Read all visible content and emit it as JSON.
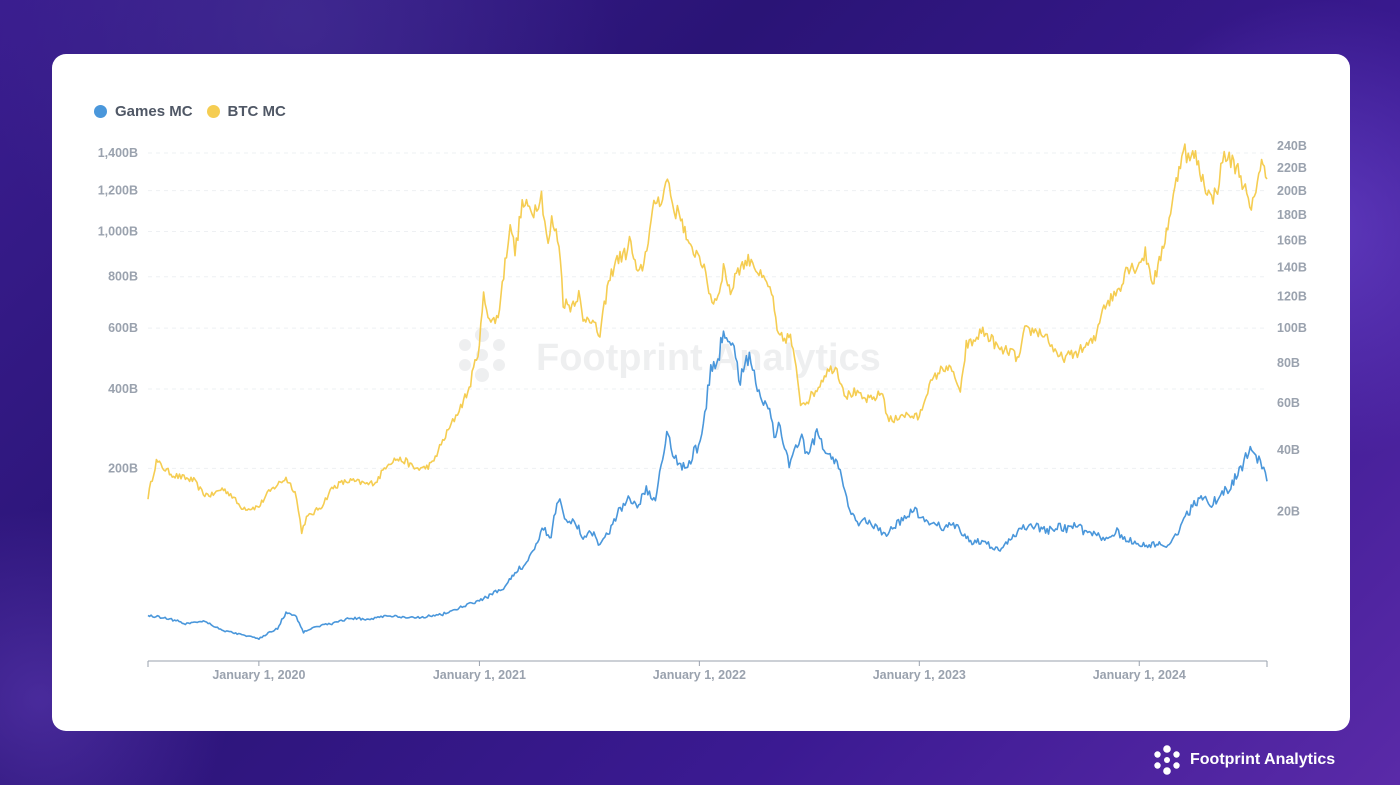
{
  "brand": {
    "name": "Footprint Analytics"
  },
  "chart_data": {
    "type": "line",
    "legend": [
      {
        "label": "Games MC",
        "color": "#4a97db"
      },
      {
        "label": "BTC MC",
        "color": "#f5cd52"
      }
    ],
    "legend_position": "top-left",
    "grid": true,
    "x_ticks": [
      "January 1, 2020",
      "January 1, 2021",
      "January 1, 2022",
      "January 1, 2023",
      "January 1, 2024"
    ],
    "x_range": [
      "2019-07-01",
      "2024-07-31"
    ],
    "y_left": {
      "scale": "sqrt",
      "range": [
        0,
        1400
      ],
      "unit": "B",
      "ticks": [
        "200B",
        "400B",
        "600B",
        "800B",
        "1,000B",
        "1,200B",
        "1,400B"
      ],
      "tick_values": [
        200,
        400,
        600,
        800,
        1000,
        1200,
        1400
      ]
    },
    "y_right": {
      "scale": "sqrt",
      "range": [
        0,
        240
      ],
      "unit": "B",
      "ticks": [
        "20B",
        "40B",
        "60B",
        "80B",
        "100B",
        "120B",
        "140B",
        "160B",
        "180B",
        "200B",
        "220B",
        "240B"
      ],
      "tick_values": [
        20,
        40,
        60,
        80,
        100,
        120,
        140,
        160,
        180,
        200,
        220,
        240
      ]
    },
    "series": [
      {
        "name": "BTC MC",
        "axis": "left",
        "color": "#f5cd52",
        "points": [
          [
            "2019-07-01",
            145
          ],
          [
            "2019-07-15",
            215
          ],
          [
            "2019-08-01",
            195
          ],
          [
            "2019-08-15",
            185
          ],
          [
            "2019-09-01",
            180
          ],
          [
            "2019-09-15",
            175
          ],
          [
            "2019-10-01",
            150
          ],
          [
            "2019-10-15",
            148
          ],
          [
            "2019-11-01",
            160
          ],
          [
            "2019-11-15",
            150
          ],
          [
            "2019-12-01",
            128
          ],
          [
            "2019-12-15",
            125
          ],
          [
            "2020-01-01",
            128
          ],
          [
            "2020-01-15",
            150
          ],
          [
            "2020-02-01",
            168
          ],
          [
            "2020-02-15",
            180
          ],
          [
            "2020-03-01",
            155
          ],
          [
            "2020-03-12",
            90
          ],
          [
            "2020-03-20",
            110
          ],
          [
            "2020-04-01",
            118
          ],
          [
            "2020-04-15",
            130
          ],
          [
            "2020-05-01",
            160
          ],
          [
            "2020-05-15",
            170
          ],
          [
            "2020-06-01",
            175
          ],
          [
            "2020-06-15",
            172
          ],
          [
            "2020-07-01",
            168
          ],
          [
            "2020-07-15",
            175
          ],
          [
            "2020-08-01",
            210
          ],
          [
            "2020-08-15",
            220
          ],
          [
            "2020-09-01",
            215
          ],
          [
            "2020-09-15",
            200
          ],
          [
            "2020-10-01",
            200
          ],
          [
            "2020-10-15",
            210
          ],
          [
            "2020-11-01",
            260
          ],
          [
            "2020-11-15",
            300
          ],
          [
            "2020-12-01",
            350
          ],
          [
            "2020-12-15",
            400
          ],
          [
            "2021-01-01",
            540
          ],
          [
            "2021-01-08",
            720
          ],
          [
            "2021-01-20",
            620
          ],
          [
            "2021-02-01",
            640
          ],
          [
            "2021-02-15",
            900
          ],
          [
            "2021-02-21",
            1050
          ],
          [
            "2021-03-01",
            900
          ],
          [
            "2021-03-13",
            1130
          ],
          [
            "2021-04-01",
            1100
          ],
          [
            "2021-04-14",
            1180
          ],
          [
            "2021-04-25",
            930
          ],
          [
            "2021-05-01",
            1050
          ],
          [
            "2021-05-13",
            950
          ],
          [
            "2021-05-20",
            700
          ],
          [
            "2021-06-01",
            680
          ],
          [
            "2021-06-15",
            730
          ],
          [
            "2021-06-22",
            620
          ],
          [
            "2021-07-01",
            650
          ],
          [
            "2021-07-20",
            570
          ],
          [
            "2021-08-01",
            750
          ],
          [
            "2021-08-15",
            870
          ],
          [
            "2021-09-01",
            900
          ],
          [
            "2021-09-07",
            960
          ],
          [
            "2021-09-21",
            800
          ],
          [
            "2021-10-01",
            860
          ],
          [
            "2021-10-20",
            1150
          ],
          [
            "2021-11-01",
            1160
          ],
          [
            "2021-11-09",
            1270
          ],
          [
            "2021-11-20",
            1100
          ],
          [
            "2021-12-01",
            1080
          ],
          [
            "2021-12-15",
            920
          ],
          [
            "2022-01-01",
            900
          ],
          [
            "2022-01-22",
            700
          ],
          [
            "2022-02-01",
            720
          ],
          [
            "2022-02-10",
            840
          ],
          [
            "2022-02-24",
            720
          ],
          [
            "2022-03-01",
            820
          ],
          [
            "2022-03-28",
            880
          ],
          [
            "2022-04-10",
            810
          ],
          [
            "2022-04-25",
            760
          ],
          [
            "2022-05-01",
            740
          ],
          [
            "2022-05-10",
            580
          ],
          [
            "2022-05-20",
            560
          ],
          [
            "2022-06-01",
            570
          ],
          [
            "2022-06-13",
            430
          ],
          [
            "2022-06-18",
            360
          ],
          [
            "2022-07-01",
            370
          ],
          [
            "2022-07-15",
            400
          ],
          [
            "2022-07-30",
            450
          ],
          [
            "2022-08-15",
            470
          ],
          [
            "2022-09-01",
            380
          ],
          [
            "2022-09-15",
            390
          ],
          [
            "2022-10-01",
            370
          ],
          [
            "2022-10-15",
            370
          ],
          [
            "2022-11-01",
            390
          ],
          [
            "2022-11-09",
            320
          ],
          [
            "2022-11-20",
            310
          ],
          [
            "2022-12-01",
            330
          ],
          [
            "2022-12-15",
            325
          ],
          [
            "2023-01-01",
            320
          ],
          [
            "2023-01-15",
            400
          ],
          [
            "2023-02-01",
            450
          ],
          [
            "2023-02-15",
            470
          ],
          [
            "2023-03-01",
            440
          ],
          [
            "2023-03-10",
            380
          ],
          [
            "2023-03-20",
            540
          ],
          [
            "2023-04-01",
            550
          ],
          [
            "2023-04-14",
            590
          ],
          [
            "2023-05-01",
            560
          ],
          [
            "2023-05-15",
            520
          ],
          [
            "2023-06-01",
            520
          ],
          [
            "2023-06-15",
            490
          ],
          [
            "2023-06-25",
            590
          ],
          [
            "2023-07-15",
            590
          ],
          [
            "2023-08-01",
            570
          ],
          [
            "2023-08-17",
            500
          ],
          [
            "2023-09-01",
            500
          ],
          [
            "2023-09-15",
            510
          ],
          [
            "2023-10-01",
            530
          ],
          [
            "2023-10-20",
            560
          ],
          [
            "2023-11-01",
            680
          ],
          [
            "2023-11-15",
            710
          ],
          [
            "2023-12-01",
            760
          ],
          [
            "2023-12-10",
            840
          ],
          [
            "2023-12-25",
            840
          ],
          [
            "2024-01-01",
            860
          ],
          [
            "2024-01-11",
            900
          ],
          [
            "2024-01-23",
            780
          ],
          [
            "2024-02-01",
            830
          ],
          [
            "2024-02-15",
            1000
          ],
          [
            "2024-02-29",
            1200
          ],
          [
            "2024-03-14",
            1440
          ],
          [
            "2024-03-25",
            1350
          ],
          [
            "2024-04-01",
            1400
          ],
          [
            "2024-04-13",
            1280
          ],
          [
            "2024-04-30",
            1150
          ],
          [
            "2024-05-10",
            1220
          ],
          [
            "2024-05-21",
            1390
          ],
          [
            "2024-06-01",
            1360
          ],
          [
            "2024-06-15",
            1300
          ],
          [
            "2024-06-25",
            1200
          ],
          [
            "2024-07-05",
            1080
          ],
          [
            "2024-07-15",
            1270
          ],
          [
            "2024-07-22",
            1340
          ],
          [
            "2024-07-31",
            1260
          ]
        ]
      },
      {
        "name": "Games MC",
        "axis": "right",
        "color": "#4a97db",
        "points": [
          [
            "2019-07-01",
            1.8
          ],
          [
            "2019-08-01",
            1.6
          ],
          [
            "2019-09-01",
            1.2
          ],
          [
            "2019-10-01",
            1.4
          ],
          [
            "2019-11-01",
            0.8
          ],
          [
            "2019-12-01",
            0.6
          ],
          [
            "2020-01-01",
            0.4
          ],
          [
            "2020-02-01",
            0.9
          ],
          [
            "2020-02-15",
            2.0
          ],
          [
            "2020-03-01",
            1.8
          ],
          [
            "2020-03-15",
            0.7
          ],
          [
            "2020-04-01",
            1.0
          ],
          [
            "2020-05-01",
            1.2
          ],
          [
            "2020-06-01",
            1.6
          ],
          [
            "2020-07-01",
            1.5
          ],
          [
            "2020-08-01",
            1.8
          ],
          [
            "2020-09-01",
            1.6
          ],
          [
            "2020-10-01",
            1.7
          ],
          [
            "2020-11-01",
            1.9
          ],
          [
            "2020-12-01",
            2.5
          ],
          [
            "2021-01-01",
            3.2
          ],
          [
            "2021-01-20",
            3.8
          ],
          [
            "2021-02-15",
            5.0
          ],
          [
            "2021-03-01",
            7.0
          ],
          [
            "2021-03-20",
            8.5
          ],
          [
            "2021-04-05",
            12.0
          ],
          [
            "2021-04-15",
            16.0
          ],
          [
            "2021-04-30",
            14.0
          ],
          [
            "2021-05-12",
            24.0
          ],
          [
            "2021-05-25",
            18.0
          ],
          [
            "2021-06-10",
            17.0
          ],
          [
            "2021-06-22",
            14.0
          ],
          [
            "2021-07-10",
            15.0
          ],
          [
            "2021-07-20",
            12.0
          ],
          [
            "2021-08-05",
            15.0
          ],
          [
            "2021-08-20",
            20.0
          ],
          [
            "2021-09-05",
            24.0
          ],
          [
            "2021-09-20",
            22.0
          ],
          [
            "2021-10-05",
            26.0
          ],
          [
            "2021-10-20",
            24.0
          ],
          [
            "2021-11-01",
            38.0
          ],
          [
            "2021-11-08",
            48.0
          ],
          [
            "2021-11-15",
            40.0
          ],
          [
            "2021-12-01",
            35.0
          ],
          [
            "2021-12-10",
            33.0
          ],
          [
            "2022-01-05",
            45.0
          ],
          [
            "2022-01-20",
            75.0
          ],
          [
            "2022-02-01",
            82.0
          ],
          [
            "2022-02-10",
            100.0
          ],
          [
            "2022-02-25",
            88.0
          ],
          [
            "2022-03-10",
            72.0
          ],
          [
            "2022-03-25",
            86.0
          ],
          [
            "2022-04-10",
            64.0
          ],
          [
            "2022-04-25",
            60.0
          ],
          [
            "2022-05-05",
            45.0
          ],
          [
            "2022-05-15",
            50.0
          ],
          [
            "2022-05-30",
            35.0
          ],
          [
            "2022-06-10",
            40.0
          ],
          [
            "2022-06-20",
            44.0
          ],
          [
            "2022-07-01",
            38.0
          ],
          [
            "2022-07-15",
            46.0
          ],
          [
            "2022-08-01",
            40.0
          ],
          [
            "2022-08-20",
            33.0
          ],
          [
            "2022-09-05",
            22.0
          ],
          [
            "2022-09-20",
            17.0
          ],
          [
            "2022-10-05",
            18.0
          ],
          [
            "2022-10-20",
            16.0
          ],
          [
            "2022-11-05",
            14.0
          ],
          [
            "2022-11-20",
            16.0
          ],
          [
            "2022-12-10",
            19.0
          ],
          [
            "2022-12-25",
            20.0
          ],
          [
            "2023-01-10",
            18.0
          ],
          [
            "2023-01-25",
            17.0
          ],
          [
            "2023-02-10",
            16.0
          ],
          [
            "2023-03-01",
            16.5
          ],
          [
            "2023-03-15",
            14.5
          ],
          [
            "2023-04-01",
            12.5
          ],
          [
            "2023-04-15",
            13.0
          ],
          [
            "2023-05-01",
            11.5
          ],
          [
            "2023-05-15",
            11.0
          ],
          [
            "2023-06-01",
            13.0
          ],
          [
            "2023-06-20",
            16.0
          ],
          [
            "2023-07-10",
            16.5
          ],
          [
            "2023-08-01",
            15.0
          ],
          [
            "2023-08-20",
            16.5
          ],
          [
            "2023-09-05",
            15.5
          ],
          [
            "2023-09-20",
            16.5
          ],
          [
            "2023-10-05",
            14.5
          ],
          [
            "2023-10-25",
            14.0
          ],
          [
            "2023-11-10",
            13.5
          ],
          [
            "2023-11-25",
            15.0
          ],
          [
            "2023-12-10",
            13.0
          ],
          [
            "2024-01-01",
            12.5
          ],
          [
            "2024-01-15",
            12.0
          ],
          [
            "2024-02-01",
            12.0
          ],
          [
            "2024-02-10",
            12.0
          ],
          [
            "2024-02-20",
            12.5
          ],
          [
            "2024-03-01",
            14.0
          ],
          [
            "2024-03-10",
            16.0
          ],
          [
            "2024-03-20",
            19.0
          ],
          [
            "2024-04-01",
            22.0
          ],
          [
            "2024-04-15",
            24.0
          ],
          [
            "2024-04-30",
            22.0
          ],
          [
            "2024-05-15",
            25.0
          ],
          [
            "2024-06-01",
            27.0
          ],
          [
            "2024-06-10",
            31.0
          ],
          [
            "2024-06-20",
            34.0
          ],
          [
            "2024-07-01",
            40.0
          ],
          [
            "2024-07-10",
            39.0
          ],
          [
            "2024-07-20",
            36.0
          ],
          [
            "2024-07-31",
            29.0
          ]
        ]
      }
    ]
  }
}
